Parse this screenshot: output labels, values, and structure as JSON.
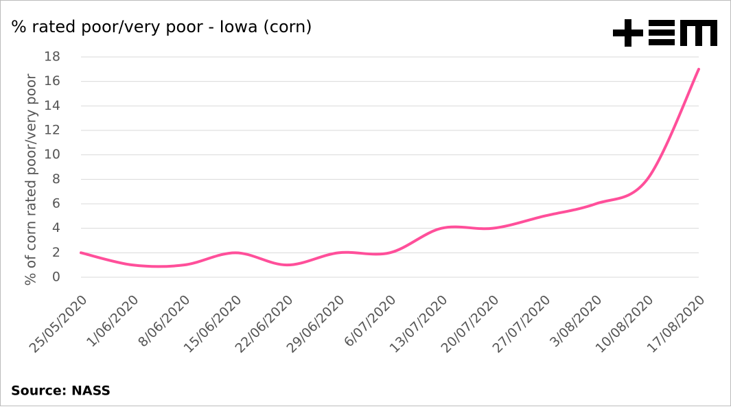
{
  "chart_data": {
    "type": "line",
    "title": "% rated poor/very poor - Iowa (corn)",
    "y_label": "% of corn rated poor/very poor",
    "source": "Source: NASS",
    "categories": [
      "25/05/2020",
      "1/06/2020",
      "8/06/2020",
      "15/06/2020",
      "22/06/2020",
      "29/06/2020",
      "6/07/2020",
      "13/07/2020",
      "20/07/2020",
      "27/07/2020",
      "3/08/2020",
      "10/08/2020",
      "17/08/2020"
    ],
    "series": [
      {
        "name": "Iowa corn",
        "color": "#ff4f9a",
        "values": [
          2,
          1,
          1,
          2,
          1,
          2,
          2,
          4,
          4,
          5,
          6,
          8,
          17
        ]
      }
    ],
    "ylim": [
      0,
      18
    ],
    "yticks": [
      0,
      2,
      4,
      6,
      8,
      10,
      12,
      14,
      16,
      18
    ],
    "grid": true
  }
}
